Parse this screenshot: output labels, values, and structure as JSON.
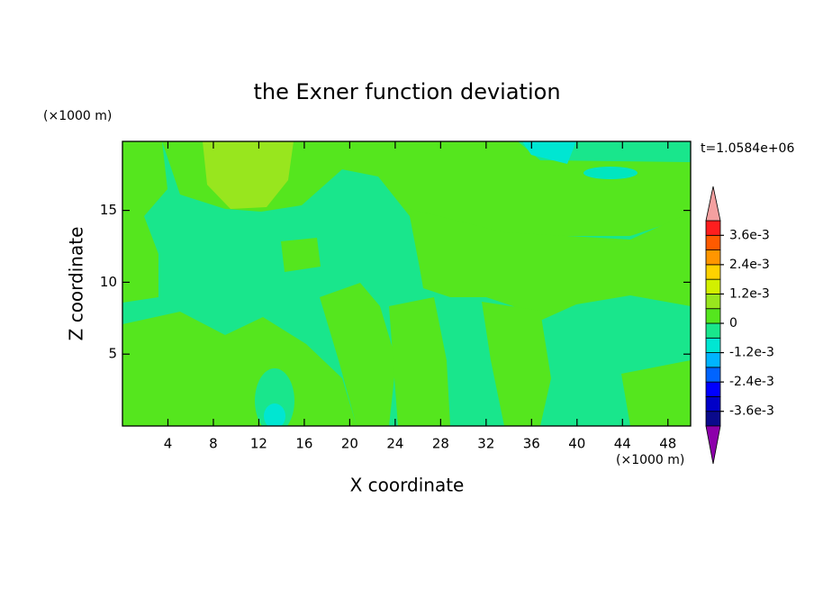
{
  "chart_data": {
    "type": "contour",
    "title": "the Exner function deviation",
    "xlabel": "X coordinate",
    "ylabel": "Z coordinate",
    "x_unit": "(×1000 m)",
    "y_unit": "(×1000 m)",
    "time_label": "t=1.0584e+06",
    "xlim": [
      0,
      50
    ],
    "ylim": [
      0,
      19.8
    ],
    "xticks": [
      4,
      8,
      12,
      16,
      20,
      24,
      28,
      32,
      36,
      40,
      44,
      48
    ],
    "yticks": [
      5,
      10,
      15
    ],
    "levels": [
      -0.0042,
      -0.0036,
      -0.003,
      -0.0024,
      -0.0018,
      -0.0012,
      -0.0006,
      0,
      0.0006,
      0.0012,
      0.0018,
      0.0024,
      0.003,
      0.0036,
      0.0042
    ],
    "level_colors": [
      "#4a0a96",
      "#0a0a8c",
      "#0000c8",
      "#0000ff",
      "#0064ff",
      "#00b4ff",
      "#00e6d2",
      "#19e68c",
      "#55e61e",
      "#98e61e",
      "#d2f000",
      "#ffd200",
      "#ff9600",
      "#ff5a00",
      "#ff1e1e"
    ],
    "under_color": "#8c00aa",
    "over_color": "#f4a0a0",
    "colorbar_ticks": [
      {
        "value": 0.0036,
        "label": "3.6e-3"
      },
      {
        "value": 0.0024,
        "label": "2.4e-3"
      },
      {
        "value": 0.0012,
        "label": "1.2e-3"
      },
      {
        "value": 0,
        "label": "0"
      },
      {
        "value": -0.0012,
        "label": "-1.2e-3"
      },
      {
        "value": -0.0024,
        "label": "-2.4e-3"
      },
      {
        "value": -0.0036,
        "label": "-3.6e-3"
      }
    ]
  }
}
